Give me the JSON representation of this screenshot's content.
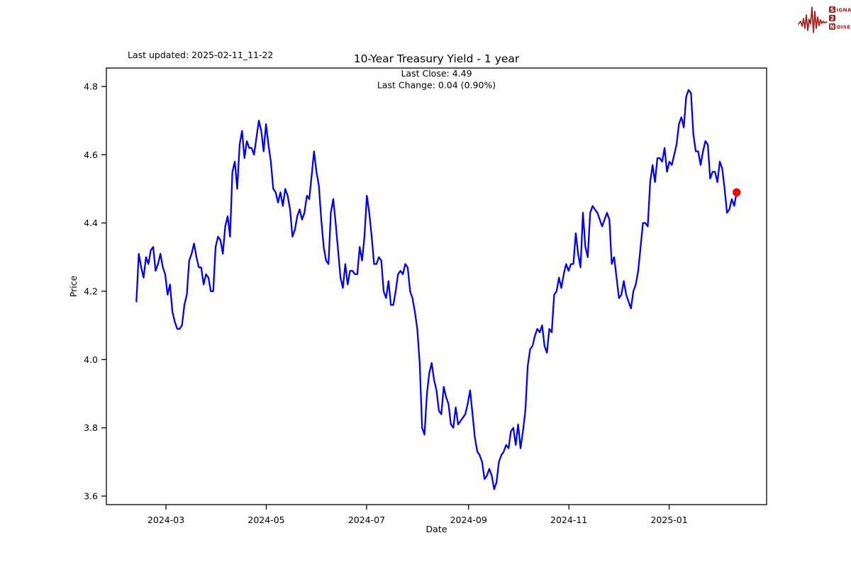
{
  "header": {
    "last_updated": "Last updated: 2025-02-11_11-22"
  },
  "logo": {
    "name": "Signal 2 Noise",
    "color": "#A31D1D",
    "rows": [
      {
        "initial": "S",
        "rest": "IGNAL"
      },
      {
        "initial": "2",
        "rest": ""
      },
      {
        "initial": "N",
        "rest": "OISE"
      }
    ]
  },
  "chart_data": {
    "type": "line",
    "title": "10-Year Treasury Yield - 1 year",
    "subtitle_line1": "Last Close: 4.49",
    "subtitle_line2": "Last Change: 0.04 (0.90%)",
    "xlabel": "Date",
    "ylabel": "Price",
    "grid": false,
    "legend": "none",
    "line_color": "#0000FF",
    "marker_color": "#FF0000",
    "last_close": 4.49,
    "last_change": 0.04,
    "last_change_pct": "0.90%",
    "start_date": "2024-02-12",
    "end_date": "2025-02-11",
    "span_days": 365,
    "xlim_days": [
      -18.25,
      383.25
    ],
    "ylim": [
      3.575,
      4.854
    ],
    "x_ticks": [
      {
        "label": "2024-03",
        "day": 18
      },
      {
        "label": "2024-05",
        "day": 79
      },
      {
        "label": "2024-07",
        "day": 140
      },
      {
        "label": "2024-09",
        "day": 202
      },
      {
        "label": "2024-11",
        "day": 263
      },
      {
        "label": "2025-01",
        "day": 324
      }
    ],
    "y_ticks": [
      {
        "label": "3.6",
        "value": 3.6
      },
      {
        "label": "3.8",
        "value": 3.8
      },
      {
        "label": "4.0",
        "value": 4.0
      },
      {
        "label": "4.2",
        "value": 4.2
      },
      {
        "label": "4.4",
        "value": 4.4
      },
      {
        "label": "4.6",
        "value": 4.6
      },
      {
        "label": "4.8",
        "value": 4.8
      }
    ],
    "series": [
      {
        "name": "10-Year Treasury Yield",
        "values": [
          4.17,
          4.31,
          4.27,
          4.24,
          4.3,
          4.28,
          4.32,
          4.33,
          4.26,
          4.28,
          4.31,
          4.27,
          4.25,
          4.19,
          4.22,
          4.14,
          4.11,
          4.09,
          4.09,
          4.1,
          4.16,
          4.19,
          4.29,
          4.31,
          4.34,
          4.3,
          4.27,
          4.27,
          4.22,
          4.25,
          4.24,
          4.2,
          4.2,
          4.33,
          4.36,
          4.35,
          4.31,
          4.39,
          4.42,
          4.36,
          4.55,
          4.58,
          4.5,
          4.63,
          4.67,
          4.59,
          4.64,
          4.62,
          4.62,
          4.6,
          4.65,
          4.7,
          4.67,
          4.61,
          4.69,
          4.63,
          4.58,
          4.5,
          4.49,
          4.46,
          4.49,
          4.45,
          4.5,
          4.48,
          4.44,
          4.36,
          4.38,
          4.42,
          4.44,
          4.41,
          4.43,
          4.48,
          4.47,
          4.54,
          4.61,
          4.55,
          4.51,
          4.41,
          4.33,
          4.29,
          4.28,
          4.43,
          4.47,
          4.4,
          4.32,
          4.24,
          4.21,
          4.28,
          4.22,
          4.26,
          4.26,
          4.25,
          4.25,
          4.33,
          4.29,
          4.36,
          4.48,
          4.43,
          4.36,
          4.28,
          4.28,
          4.3,
          4.29,
          4.2,
          4.18,
          4.23,
          4.16,
          4.16,
          4.2,
          4.25,
          4.26,
          4.25,
          4.28,
          4.27,
          4.2,
          4.18,
          4.14,
          4.09,
          3.99,
          3.8,
          3.78,
          3.9,
          3.96,
          3.99,
          3.94,
          3.91,
          3.85,
          3.84,
          3.92,
          3.89,
          3.87,
          3.81,
          3.8,
          3.86,
          3.81,
          3.82,
          3.83,
          3.84,
          3.87,
          3.91,
          3.84,
          3.77,
          3.73,
          3.72,
          3.7,
          3.65,
          3.66,
          3.68,
          3.66,
          3.62,
          3.64,
          3.7,
          3.72,
          3.73,
          3.75,
          3.74,
          3.79,
          3.8,
          3.75,
          3.81,
          3.74,
          3.79,
          3.85,
          3.98,
          4.03,
          4.04,
          4.07,
          4.09,
          4.08,
          4.1,
          4.04,
          4.02,
          4.09,
          4.08,
          4.19,
          4.2,
          4.24,
          4.21,
          4.25,
          4.28,
          4.26,
          4.28,
          4.28,
          4.37,
          4.31,
          4.27,
          4.43,
          4.33,
          4.3,
          4.43,
          4.45,
          4.44,
          4.43,
          4.41,
          4.39,
          4.41,
          4.43,
          4.41,
          4.28,
          4.3,
          4.24,
          4.18,
          4.19,
          4.23,
          4.19,
          4.17,
          4.15,
          4.2,
          4.22,
          4.26,
          4.33,
          4.4,
          4.4,
          4.39,
          4.52,
          4.57,
          4.52,
          4.59,
          4.59,
          4.58,
          4.62,
          4.55,
          4.58,
          4.57,
          4.6,
          4.63,
          4.69,
          4.71,
          4.68,
          4.77,
          4.79,
          4.78,
          4.66,
          4.61,
          4.61,
          4.57,
          4.61,
          4.64,
          4.63,
          4.53,
          4.55,
          4.55,
          4.52,
          4.58,
          4.56,
          4.5,
          4.43,
          4.44,
          4.47,
          4.45,
          4.49
        ]
      }
    ]
  }
}
